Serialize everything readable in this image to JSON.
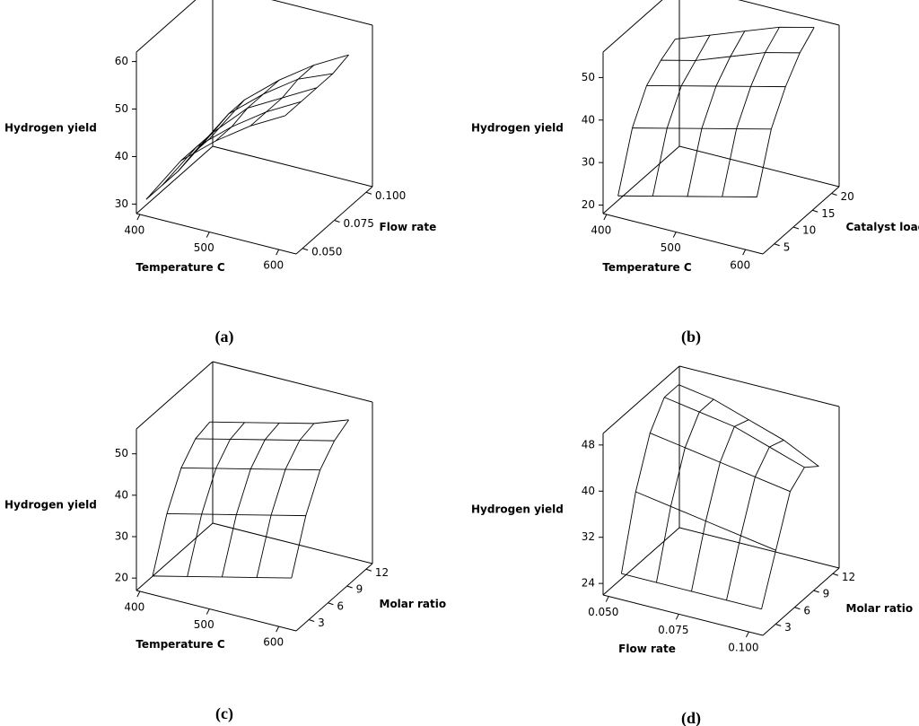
{
  "chart_data": [
    {
      "type": "surface",
      "panel": "(a)",
      "zlabel": "Hydrogen yield",
      "xlabel": "Temperature C",
      "ylabel": "Flow rate",
      "xlim": [
        395,
        625
      ],
      "xticks": [
        400,
        500,
        600
      ],
      "ylim": [
        0.045,
        0.105
      ],
      "yticks": [
        {
          "value": 0.05,
          "label": "0.050"
        },
        {
          "value": 0.075,
          "label": "0.075"
        },
        {
          "value": 0.1,
          "label": "0.100"
        }
      ],
      "zlim": [
        28,
        62
      ],
      "zticks": [
        30,
        40,
        50,
        60
      ],
      "x": [
        400,
        450,
        500,
        550,
        600
      ],
      "y": [
        0.05,
        0.0625,
        0.075,
        0.0875,
        0.1
      ],
      "z": [
        [
          30,
          40,
          46,
          51,
          55
        ],
        [
          30,
          40,
          46,
          51,
          55
        ],
        [
          30,
          40,
          47,
          51,
          55
        ],
        [
          31,
          41,
          47,
          52,
          55
        ],
        [
          31,
          41,
          47,
          52,
          56
        ]
      ]
    },
    {
      "type": "surface",
      "panel": "(b)",
      "zlabel": "Hydrogen yield",
      "xlabel": "Temperature C",
      "ylabel": "Catalyst loading",
      "xlim": [
        395,
        625
      ],
      "xticks": [
        400,
        500,
        600
      ],
      "ylim": [
        2,
        22
      ],
      "yticks": [
        5,
        10,
        15,
        20
      ],
      "zlim": [
        18,
        56
      ],
      "zticks": [
        20,
        30,
        40,
        50
      ],
      "x": [
        400,
        450,
        500,
        550,
        600
      ],
      "y": [
        5,
        8.75,
        12.5,
        16.25,
        20
      ],
      "z": [
        [
          20,
          22,
          24,
          26,
          28
        ],
        [
          33,
          35,
          37,
          39,
          41
        ],
        [
          40,
          42,
          44,
          46,
          48
        ],
        [
          43,
          45,
          48,
          51,
          53
        ],
        [
          45,
          48,
          51,
          54,
          56
        ]
      ]
    },
    {
      "type": "surface",
      "panel": "(c)",
      "zlabel": "Hydrogen yield",
      "xlabel": "Temperature C",
      "ylabel": "Molar ratio",
      "xlim": [
        395,
        625
      ],
      "xticks": [
        400,
        500,
        600
      ],
      "ylim": [
        1,
        13
      ],
      "yticks": [
        3,
        6,
        9,
        12
      ],
      "zlim": [
        17,
        56
      ],
      "zticks": [
        20,
        30,
        40,
        50
      ],
      "x": [
        400,
        450,
        500,
        550,
        600
      ],
      "y": [
        3,
        5.25,
        7.5,
        9.75,
        12
      ],
      "z": [
        [
          18,
          20,
          22,
          24,
          26
        ],
        [
          30,
          32,
          34,
          36,
          38
        ],
        [
          38,
          40,
          42,
          44,
          46
        ],
        [
          42,
          44,
          46,
          48,
          50
        ],
        [
          43,
          45,
          47,
          49,
          52
        ]
      ]
    },
    {
      "type": "surface",
      "panel": "(d)",
      "zlabel": "Hydrogen yield",
      "xlabel": "Flow rate",
      "ylabel": "Molar ratio",
      "xlim": [
        0.048,
        0.105
      ],
      "xticks": [
        {
          "value": 0.05,
          "label": "0.050"
        },
        {
          "value": 0.075,
          "label": "0.075"
        },
        {
          "value": 0.1,
          "label": "0.100"
        }
      ],
      "ylim": [
        1,
        13
      ],
      "yticks": [
        3,
        6,
        9,
        12
      ],
      "zlim": [
        22,
        50
      ],
      "zticks": [
        24,
        32,
        40,
        48
      ],
      "x": [
        0.05,
        0.0625,
        0.075,
        0.0875,
        0.1
      ],
      "y": [
        3,
        5.25,
        7.5,
        9.75,
        12
      ],
      "z": [
        [
          24,
          24,
          24,
          24,
          24
        ],
        [
          36,
          35,
          34,
          33,
          32
        ],
        [
          44,
          43,
          42,
          41,
          40
        ],
        [
          48,
          47,
          46,
          44,
          42
        ],
        [
          48,
          47,
          45,
          43,
          40
        ]
      ]
    }
  ]
}
